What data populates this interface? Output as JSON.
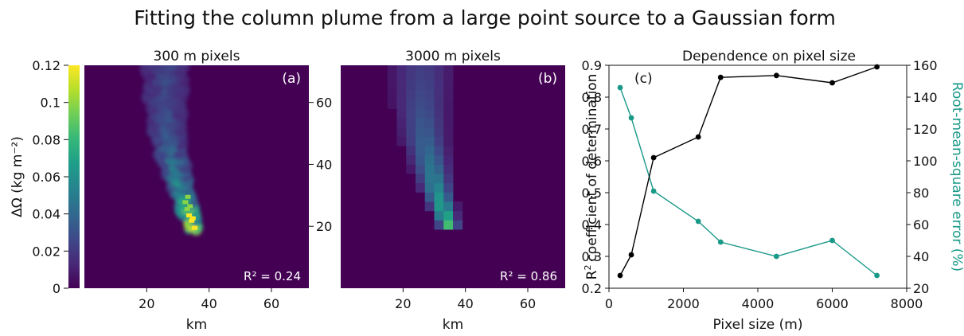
{
  "figure": {
    "title": "Fitting the column plume from a large point source to a Gaussian form"
  },
  "colors": {
    "background": "#440154",
    "r2_line": "#000000",
    "rmse_line": "#1a9988",
    "viridis": [
      "#440154",
      "#482878",
      "#3e4989",
      "#31688e",
      "#26828e",
      "#1f9e89",
      "#35b779",
      "#6ece58",
      "#b5de2b",
      "#fde725"
    ]
  },
  "colorbar": {
    "label": "ΔΩ (kg m⁻²)",
    "ticks": [
      "0",
      "0.02",
      "0.04",
      "0.06",
      "0.08",
      "0.1",
      "0.12"
    ],
    "min": 0,
    "max": 0.12
  },
  "panels": {
    "a": {
      "title": "300 m pixels",
      "tag": "(a)",
      "r2_label": "R² = 0.24",
      "xlabel": "km",
      "xticks": [
        "20",
        "40",
        "60"
      ]
    },
    "b": {
      "title": "3000 m pixels",
      "tag": "(b)",
      "r2_label": "R² = 0.86",
      "xlabel": "km",
      "xticks": [
        "20",
        "40",
        "60"
      ],
      "yticks": [
        "20",
        "40",
        "60"
      ]
    },
    "c": {
      "title": "Dependence on pixel size",
      "tag": "(c)",
      "xlabel": "Pixel size (m)",
      "ylabel_left_sup": "2",
      "ylabel_left_main": "coefficient of determination",
      "ylabel_left_r": "R",
      "ylabel_right": "Root-mean-square error (%)",
      "xticks": [
        "0",
        "2000",
        "4000",
        "6000",
        "8000"
      ],
      "yticks_left": [
        "0.2",
        "0.3",
        "0.4",
        "0.5",
        "0.6",
        "0.7",
        "0.8",
        "0.9"
      ],
      "yticks_right": [
        "20",
        "40",
        "60",
        "80",
        "100",
        "120",
        "140",
        "160"
      ]
    }
  },
  "chart_data": [
    {
      "type": "heatmap",
      "title": "300 m pixels",
      "xlabel": "km",
      "xlim": [
        0,
        72
      ],
      "ylim": [
        0,
        72
      ],
      "colorbar_range": [
        0,
        0.12
      ],
      "annotation": "R² = 0.24",
      "plume_axis_km": [
        [
          35,
          19
        ],
        [
          33,
          25
        ],
        [
          31,
          31
        ],
        [
          29,
          39
        ],
        [
          27,
          48
        ],
        [
          26,
          58
        ],
        [
          26,
          70
        ]
      ],
      "plume_peak_value": 0.12,
      "plume_peak_location_km": [
        35,
        19
      ]
    },
    {
      "type": "heatmap",
      "title": "3000 m pixels",
      "xlabel": "km",
      "xlim": [
        0,
        72
      ],
      "ylim": [
        0,
        72
      ],
      "colorbar_range": [
        0,
        0.12
      ],
      "annotation": "R² = 0.86",
      "plume_axis_km": [
        [
          35,
          19
        ],
        [
          33,
          25
        ],
        [
          31,
          31
        ],
        [
          29,
          39
        ],
        [
          27,
          48
        ],
        [
          26,
          58
        ],
        [
          26,
          70
        ]
      ],
      "plume_peak_value": 0.075,
      "plume_peak_location_km": [
        34.5,
        19.5
      ]
    },
    {
      "type": "line",
      "title": "Dependence on pixel size",
      "xlabel": "Pixel size (m)",
      "xlim": [
        0,
        8000
      ],
      "x": [
        300,
        600,
        1200,
        2400,
        3000,
        4500,
        6000,
        7200
      ],
      "series": [
        {
          "axis": "left",
          "ylabel": "R² coefficient of determination",
          "ylim": [
            0.2,
            0.9
          ],
          "color": "#000000",
          "values": [
            0.24,
            0.305,
            0.61,
            0.675,
            0.862,
            0.868,
            0.845,
            0.895
          ]
        },
        {
          "axis": "right",
          "ylabel": "Root-mean-square error (%)",
          "ylim": [
            20,
            160
          ],
          "color": "#1a9988",
          "values": [
            146,
            127,
            81,
            62,
            49,
            40,
            50,
            28
          ]
        }
      ]
    }
  ]
}
